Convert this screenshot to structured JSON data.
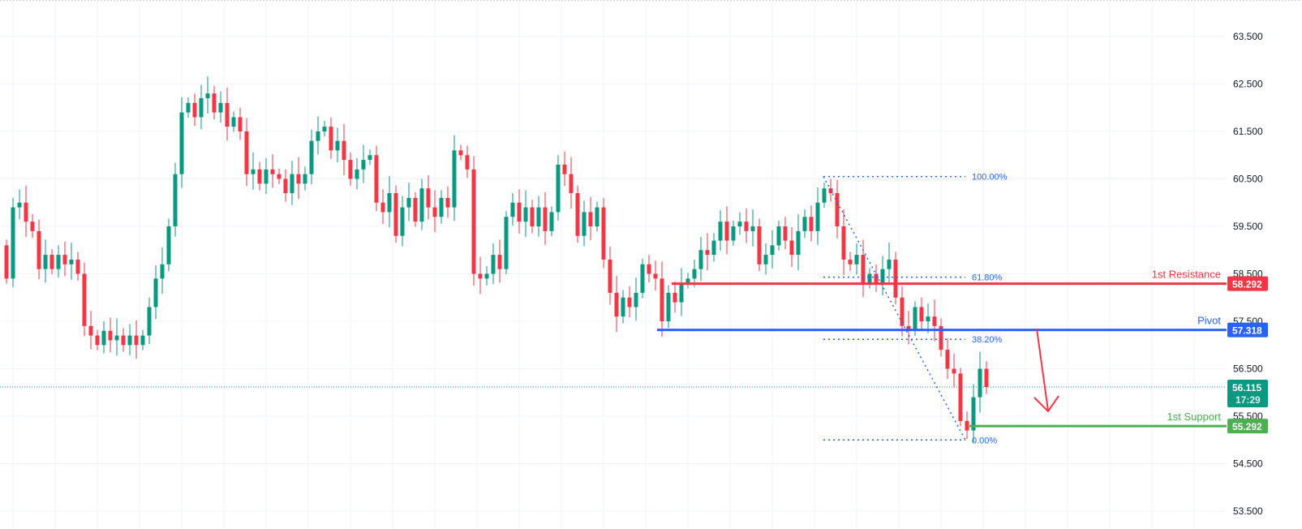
{
  "chart_data": {
    "type": "candlestick",
    "title": "",
    "ylim": [
      53.5,
      64.0
    ],
    "y_ticks": [
      "63.500",
      "62.500",
      "61.500",
      "60.500",
      "59.500",
      "58.500",
      "57.500",
      "56.500",
      "55.500",
      "54.500",
      "53.500"
    ],
    "y_tick_values": [
      63.5,
      62.5,
      61.5,
      60.5,
      59.5,
      58.5,
      57.5,
      56.5,
      55.5,
      54.5,
      53.5
    ],
    "grid": true,
    "first_open": 59.1,
    "closes": [
      58.4,
      59.9,
      60.0,
      59.6,
      59.4,
      58.6,
      58.9,
      58.6,
      58.9,
      58.7,
      58.8,
      58.5,
      57.4,
      57.2,
      57.0,
      57.3,
      57.1,
      57.2,
      57.0,
      57.2,
      57.0,
      57.2,
      57.8,
      58.4,
      58.7,
      59.5,
      60.6,
      61.9,
      62.1,
      61.8,
      62.2,
      62.3,
      61.9,
      62.1,
      61.6,
      61.8,
      61.5,
      60.6,
      60.7,
      60.4,
      60.7,
      60.6,
      60.5,
      60.2,
      60.6,
      60.4,
      60.6,
      61.3,
      61.5,
      61.6,
      61.1,
      61.3,
      60.9,
      60.5,
      60.7,
      60.9,
      61.0,
      60.0,
      59.8,
      60.2,
      59.3,
      59.9,
      60.1,
      59.6,
      60.3,
      59.9,
      59.7,
      60.1,
      59.9,
      61.1,
      61.0,
      60.7,
      58.5,
      58.4,
      58.5,
      58.9,
      58.6,
      59.7,
      60.0,
      59.6,
      59.9,
      59.5,
      59.9,
      59.4,
      59.8,
      60.8,
      60.6,
      60.2,
      59.3,
      59.8,
      59.5,
      59.9,
      58.8,
      58.1,
      57.6,
      58.0,
      57.8,
      58.1,
      58.7,
      58.5,
      58.4,
      57.5,
      58.1,
      57.9,
      58.3,
      58.4,
      58.6,
      59.0,
      58.9,
      59.2,
      59.6,
      59.2,
      59.5,
      59.6,
      59.4,
      59.5,
      58.7,
      58.9,
      59.1,
      59.5,
      59.2,
      58.9,
      59.4,
      59.7,
      59.4,
      60.0,
      60.3,
      60.2,
      59.5,
      58.8,
      58.7,
      58.9,
      58.3,
      58.5,
      58.3,
      58.6,
      58.8,
      58.0,
      57.4,
      57.3,
      57.8,
      57.5,
      57.6,
      57.4,
      56.9,
      56.5,
      56.4,
      55.4,
      55.2,
      55.9,
      56.5,
      56.115
    ],
    "current_price": {
      "value": 56.115,
      "label": "56.115",
      "countdown": "17:29"
    },
    "levels": [
      {
        "name": "1st Resistance",
        "value": 58.292,
        "label": "58.292",
        "color": "#f23645"
      },
      {
        "name": "Pivot",
        "value": 57.318,
        "label": "57.318",
        "color": "#2962ff"
      },
      {
        "name": "1st Support",
        "value": 55.292,
        "label": "55.292",
        "color": "#4caf50"
      }
    ],
    "fibonacci": {
      "high": 60.55,
      "low": 55.0,
      "levels": [
        {
          "ratio": 1.0,
          "label": "100.00%"
        },
        {
          "ratio": 0.618,
          "label": "61.80%"
        },
        {
          "ratio": 0.382,
          "label": "38.20%"
        },
        {
          "ratio": 0.0,
          "label": "0.00%"
        }
      ]
    },
    "colors": {
      "up": "#089981",
      "down": "#f23645",
      "fib": "#2962ff",
      "arrow": "#f23645",
      "current": "#089981"
    }
  }
}
